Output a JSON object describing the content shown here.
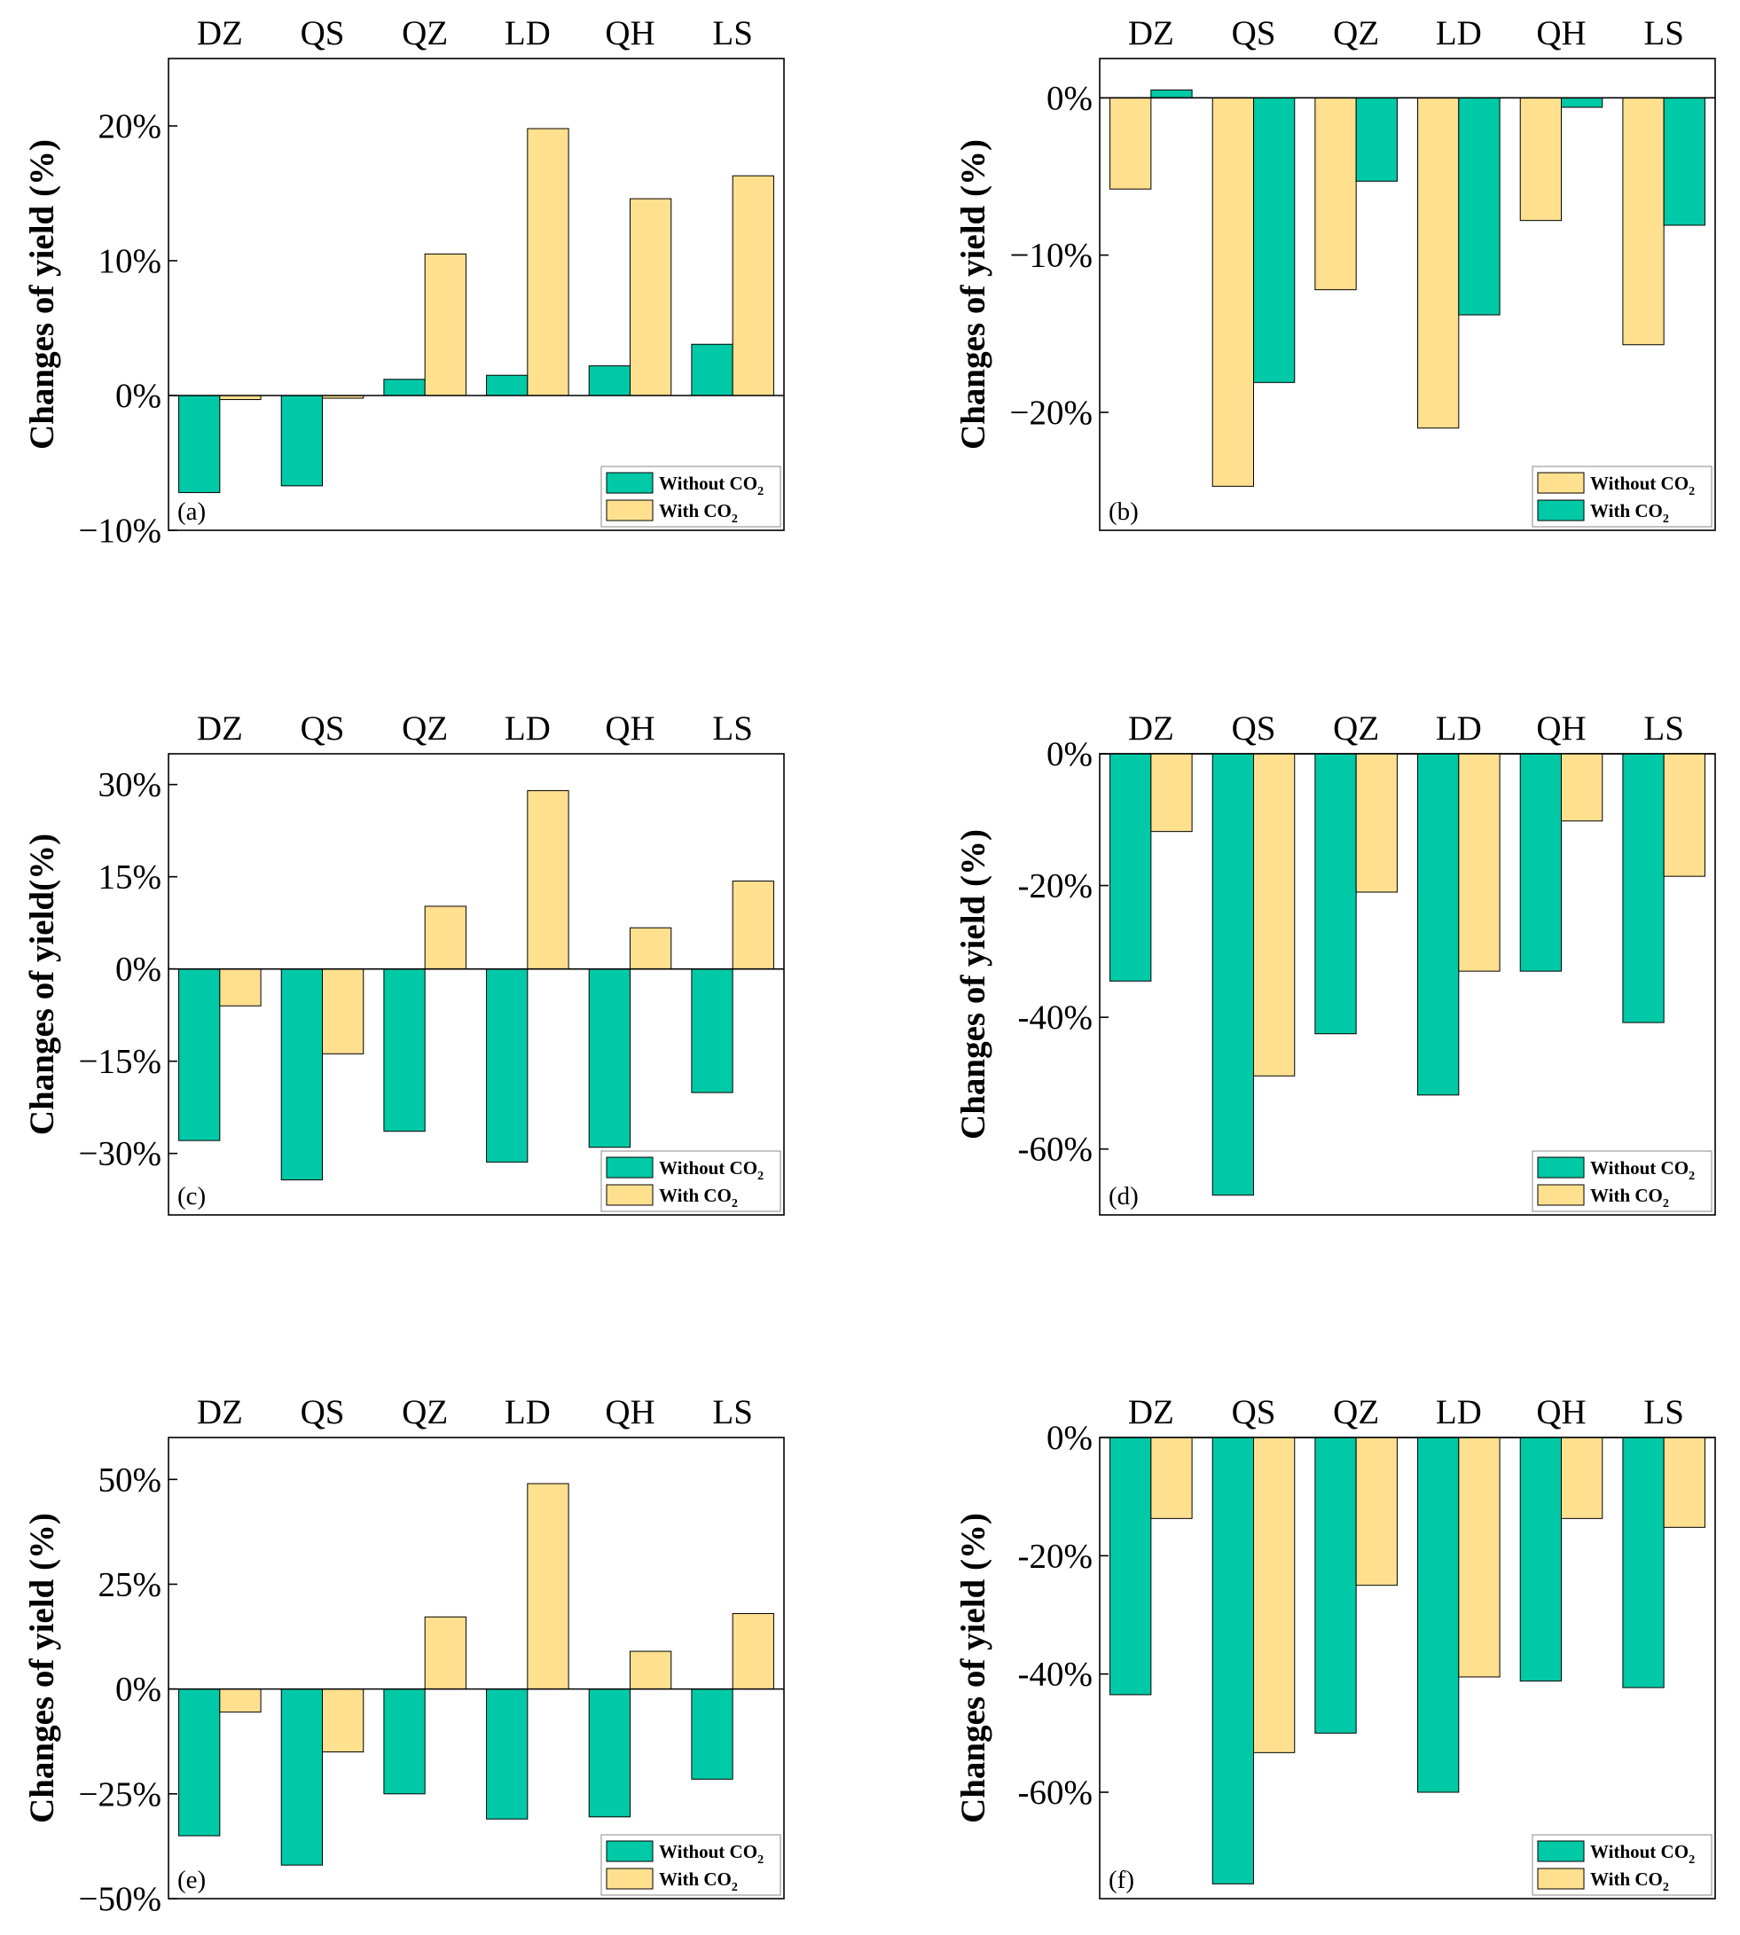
{
  "colors": {
    "teal": "#00c9a7",
    "yellow": "#ffe08f",
    "axis": "#000000"
  },
  "chart_data": [
    {
      "panel": "(a)",
      "type": "bar",
      "categories": [
        "DZ",
        "QS",
        "QZ",
        "LD",
        "QH",
        "LS"
      ],
      "ylabel": "Changes of yield (%)",
      "ylim": [
        -10,
        25
      ],
      "yticks": [
        -10,
        0,
        10,
        20
      ],
      "ytick_labels": [
        "−10%",
        "0%",
        "10%",
        "20%"
      ],
      "series": [
        {
          "name": "Without CO",
          "sub": "2",
          "color": "#00c9a7",
          "values": [
            -7.2,
            -6.7,
            1.2,
            1.5,
            2.2,
            3.8
          ]
        },
        {
          "name": "With CO",
          "sub": "2",
          "color": "#ffe08f",
          "values": [
            -0.3,
            -0.2,
            10.5,
            19.8,
            14.6,
            16.3
          ]
        }
      ],
      "legend_order": [
        0,
        1
      ]
    },
    {
      "panel": "(b)",
      "type": "bar",
      "categories": [
        "DZ",
        "QS",
        "QZ",
        "LD",
        "QH",
        "LS"
      ],
      "ylabel": "Changes of yield (%)",
      "ylim": [
        -27.5,
        2.5
      ],
      "yticks": [
        -20,
        -10,
        0
      ],
      "ytick_labels": [
        "−20%",
        "−10%",
        "0%"
      ],
      "series": [
        {
          "name": "Without CO",
          "sub": "2",
          "color": "#ffe08f",
          "values": [
            -5.8,
            -24.7,
            -12.2,
            -21.0,
            -7.8,
            -15.7
          ]
        },
        {
          "name": "With CO",
          "sub": "2",
          "color": "#00c9a7",
          "values": [
            0.5,
            -18.1,
            -5.3,
            -13.8,
            -0.6,
            -8.1
          ]
        }
      ],
      "legend_order": [
        0,
        1
      ]
    },
    {
      "panel": "(c)",
      "type": "bar",
      "categories": [
        "DZ",
        "QS",
        "QZ",
        "LD",
        "QH",
        "LS"
      ],
      "ylabel": "Changes of yield(%)",
      "ylim": [
        -40,
        35
      ],
      "yticks": [
        -30,
        -15,
        0,
        15,
        30
      ],
      "ytick_labels": [
        "−30%",
        "−15%",
        "0%",
        "15%",
        "30%"
      ],
      "series": [
        {
          "name": "Without CO",
          "sub": "2",
          "color": "#00c9a7",
          "values": [
            -27.9,
            -34.3,
            -26.4,
            -31.4,
            -29.0,
            -20.1
          ]
        },
        {
          "name": "With CO",
          "sub": "2",
          "color": "#ffe08f",
          "values": [
            -6.0,
            -13.8,
            10.2,
            29.0,
            6.7,
            14.3
          ]
        }
      ],
      "legend_order": [
        0,
        1
      ]
    },
    {
      "panel": "(d)",
      "type": "bar",
      "categories": [
        "DZ",
        "QS",
        "QZ",
        "LD",
        "QH",
        "LS"
      ],
      "ylabel": "Changes of yield (%)",
      "ylim": [
        -70,
        0
      ],
      "yticks": [
        -60,
        -40,
        -20,
        0
      ],
      "ytick_labels": [
        "-60%",
        "-40%",
        "-20%",
        "0%"
      ],
      "series": [
        {
          "name": "Without CO",
          "sub": "2",
          "color": "#00c9a7",
          "values": [
            -34.5,
            -67.0,
            -42.5,
            -51.8,
            -33.0,
            -40.8
          ]
        },
        {
          "name": "With CO",
          "sub": "2",
          "color": "#ffe08f",
          "values": [
            -11.8,
            -48.9,
            -21.0,
            -33.0,
            -10.2,
            -18.6
          ]
        }
      ],
      "legend_order": [
        0,
        1
      ]
    },
    {
      "panel": "(e)",
      "type": "bar",
      "categories": [
        "DZ",
        "QS",
        "QZ",
        "LD",
        "QH",
        "LS"
      ],
      "ylabel": "Changes of yield (%)",
      "ylim": [
        -50,
        60
      ],
      "yticks": [
        -50,
        -25,
        0,
        25,
        50
      ],
      "ytick_labels": [
        "−50%",
        "−25%",
        "0%",
        "25%",
        "50%"
      ],
      "series": [
        {
          "name": "Without CO",
          "sub": "2",
          "color": "#00c9a7",
          "values": [
            -35.0,
            -42.0,
            -25.0,
            -31.0,
            -30.5,
            -21.5
          ]
        },
        {
          "name": "With CO",
          "sub": "2",
          "color": "#ffe08f",
          "values": [
            -5.5,
            -15.0,
            17.2,
            49.0,
            9.0,
            18.0
          ]
        }
      ],
      "legend_order": [
        0,
        1
      ]
    },
    {
      "panel": "(f)",
      "type": "bar",
      "categories": [
        "DZ",
        "QS",
        "QZ",
        "LD",
        "QH",
        "LS"
      ],
      "ylabel": "Changes of yield (%)",
      "ylim": [
        -78,
        0
      ],
      "yticks": [
        -60,
        -40,
        -20,
        0
      ],
      "ytick_labels": [
        "-60%",
        "-40%",
        "-20%",
        "0%"
      ],
      "series": [
        {
          "name": "Without CO",
          "sub": "2",
          "color": "#00c9a7",
          "values": [
            -43.5,
            -75.5,
            -50.0,
            -60.0,
            -41.2,
            -42.3
          ]
        },
        {
          "name": "With CO",
          "sub": "2",
          "color": "#ffe08f",
          "values": [
            -13.7,
            -53.3,
            -25.0,
            -40.5,
            -13.7,
            -15.2
          ]
        }
      ],
      "legend_order": [
        0,
        1
      ]
    }
  ]
}
